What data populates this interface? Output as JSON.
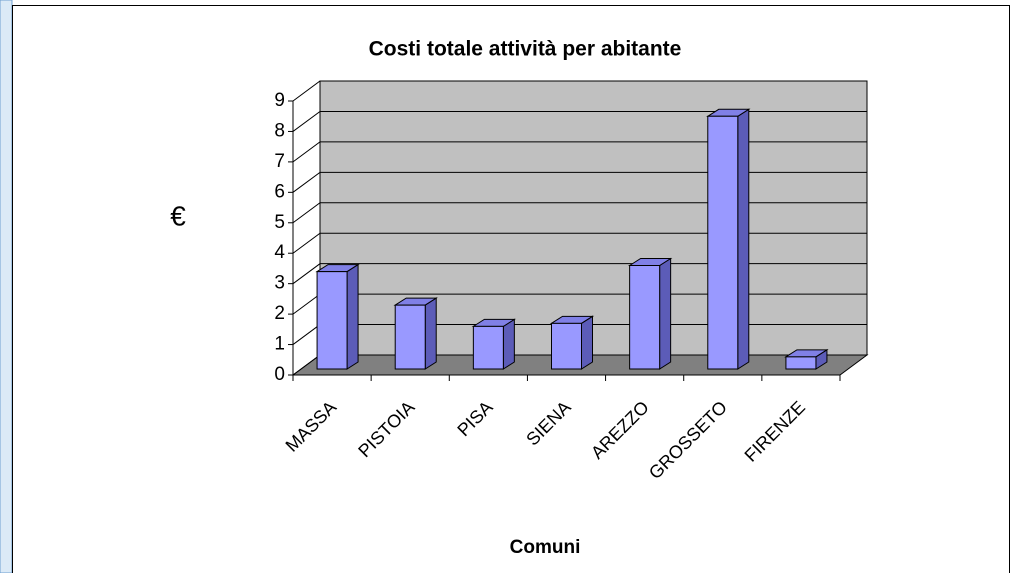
{
  "chart_data": {
    "type": "bar3d",
    "title": "Costi totale attività per abitante",
    "y_label": "€",
    "x_label": "Comuni",
    "categories": [
      "MASSA",
      "PISTOIA",
      "PISA",
      "SIENA",
      "AREZZO",
      "GROSSETO",
      "FIRENZE"
    ],
    "values": [
      3.2,
      2.1,
      1.4,
      1.5,
      3.4,
      8.3,
      0.4
    ],
    "color": "#9999ff",
    "ylim": [
      0,
      9
    ],
    "yticks": [
      0,
      1,
      2,
      3,
      4,
      5,
      6,
      7,
      8,
      9
    ],
    "grid": true
  }
}
